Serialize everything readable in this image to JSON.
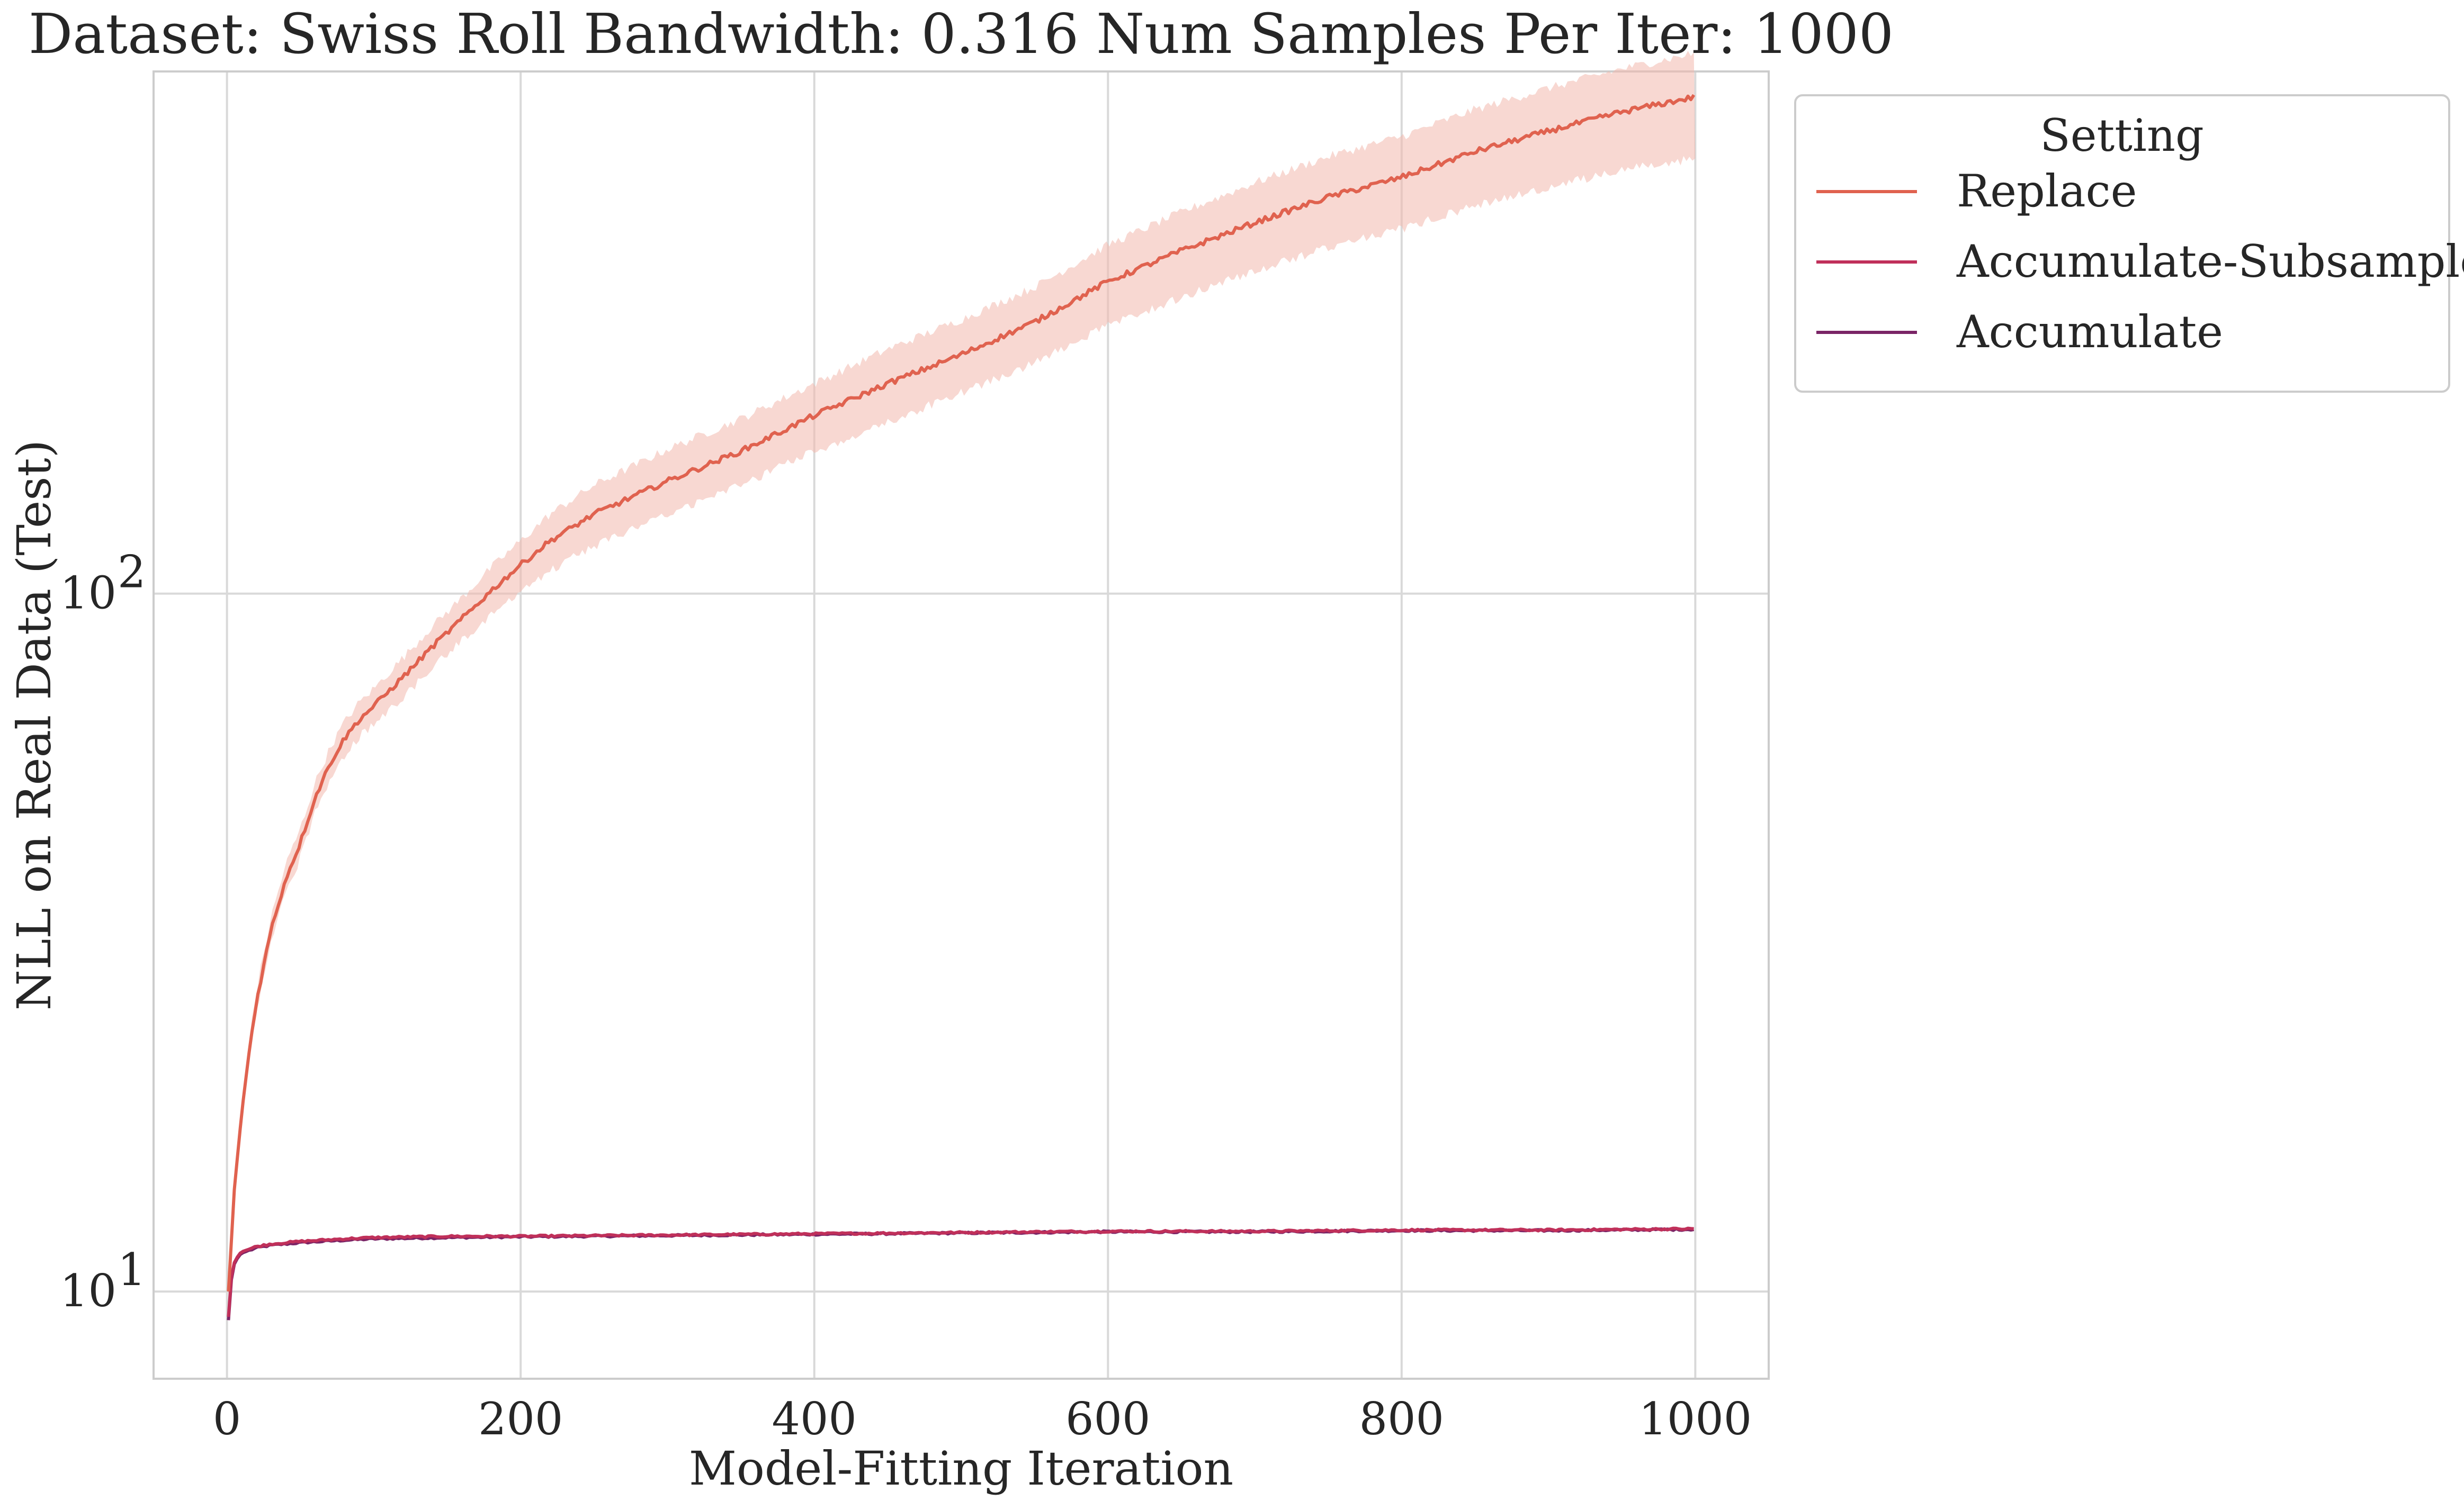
{
  "chart_data": {
    "type": "line",
    "title": "Dataset: Swiss Roll Bandwidth: 0.316 Num Samples Per Iter: 1000",
    "xlabel": "Model-Fitting Iteration",
    "ylabel": "NLL on Real Data (Test)",
    "xlim": [
      -50,
      1050
    ],
    "ylim": [
      7.5,
      560
    ],
    "yscale": "log",
    "grid": true,
    "x_ticks": [
      0,
      200,
      400,
      600,
      800,
      1000
    ],
    "x_tick_labels": [
      "0",
      "200",
      "400",
      "600",
      "800",
      "1000"
    ],
    "y_ticks": [
      10,
      100
    ],
    "y_tick_labels": [
      {
        "base": "10",
        "exp": "1"
      },
      {
        "base": "10",
        "exp": "2"
      }
    ],
    "legend": {
      "title": "Setting",
      "placement": "outside-top-right"
    },
    "series": [
      {
        "name": "Replace",
        "color": "#e0624f",
        "band_color": "#f2b8ad",
        "x": [
          1,
          5,
          10,
          15,
          20,
          30,
          40,
          50,
          60,
          70,
          80,
          90,
          100,
          120,
          140,
          160,
          180,
          200,
          220,
          250,
          300,
          350,
          400,
          450,
          500,
          550,
          600,
          650,
          700,
          750,
          800,
          850,
          900,
          950,
          1000
        ],
        "y": [
          10,
          14,
          18,
          22,
          26,
          33,
          39,
          44,
          51,
          57,
          62,
          66,
          69,
          76,
          84,
          92,
          101,
          110,
          119,
          130,
          145,
          160,
          180,
          200,
          220,
          245,
          280,
          310,
          340,
          370,
          395,
          430,
          460,
          490,
          515
        ],
        "lower": [
          10,
          13.5,
          17.5,
          21.3,
          25,
          31.6,
          37.2,
          41.9,
          48.5,
          54,
          58.7,
          62.3,
          65,
          71.1,
          78.3,
          85.5,
          93.3,
          101,
          108,
          117,
          130,
          143,
          160,
          176,
          194,
          214,
          242,
          266,
          290,
          313,
          333,
          360,
          382,
          405,
          420
        ],
        "upper": [
          10,
          14.5,
          18.5,
          22.8,
          27,
          34.4,
          40.9,
          46.1,
          53.6,
          60,
          65.5,
          69.8,
          73.1,
          81,
          89.9,
          98.7,
          109,
          119,
          130,
          143,
          161,
          178,
          200,
          224,
          247,
          275,
          316,
          352,
          388,
          423,
          452,
          494,
          530,
          565,
          595
        ]
      },
      {
        "name": "Accumulate-Subsample",
        "color": "#c0305a",
        "x": [
          1,
          3,
          5,
          8,
          10,
          15,
          20,
          30,
          50,
          80,
          100,
          150,
          200,
          300,
          400,
          500,
          600,
          700,
          800,
          900,
          1000
        ],
        "y": [
          9.2,
          10.5,
          11.0,
          11.3,
          11.4,
          11.5,
          11.6,
          11.7,
          11.8,
          11.9,
          11.95,
          12.0,
          12.0,
          12.05,
          12.1,
          12.15,
          12.2,
          12.2,
          12.25,
          12.25,
          12.3
        ]
      },
      {
        "name": "Accumulate",
        "color": "#7a2466",
        "x": [
          1,
          3,
          5,
          8,
          10,
          15,
          20,
          30,
          50,
          80,
          100,
          150,
          200,
          300,
          400,
          500,
          600,
          700,
          800,
          900,
          1000
        ],
        "y": [
          9.1,
          10.4,
          10.95,
          11.25,
          11.35,
          11.45,
          11.55,
          11.65,
          11.75,
          11.85,
          11.9,
          11.95,
          11.98,
          12.03,
          12.08,
          12.13,
          12.18,
          12.18,
          12.23,
          12.23,
          12.28
        ]
      }
    ]
  }
}
